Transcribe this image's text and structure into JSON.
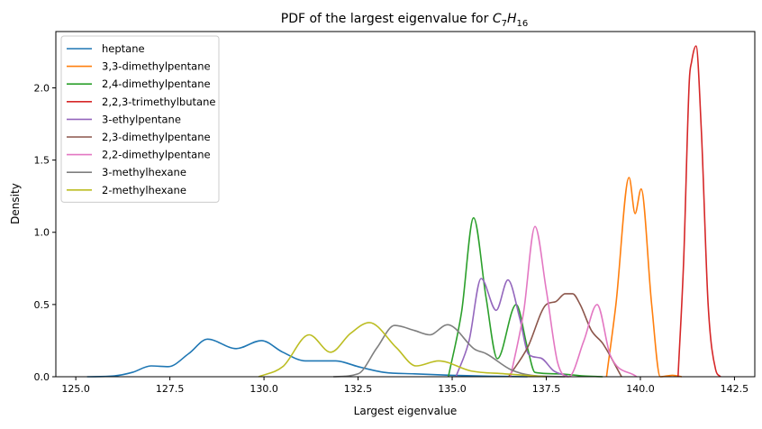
{
  "chart_data": {
    "type": "line",
    "title": "PDF of the largest eigenvalue for ",
    "title_math": {
      "base1": "C",
      "sub1": "7",
      "base2": "H",
      "sub2": "16"
    },
    "xlabel": "Largest eigenvalue",
    "ylabel": "Density",
    "xlim": [
      124.47,
      143.04
    ],
    "ylim": [
      0,
      2.39
    ],
    "xticks": [
      125.0,
      127.5,
      130.0,
      132.5,
      135.0,
      137.5,
      140.0,
      142.5
    ],
    "xtick_labels": [
      "125.0",
      "127.5",
      "130.0",
      "132.5",
      "135.0",
      "137.5",
      "140.0",
      "142.5"
    ],
    "yticks": [
      0.0,
      0.5,
      1.0,
      1.5,
      2.0
    ],
    "ytick_labels": [
      "0.0",
      "0.5",
      "1.0",
      "1.5",
      "2.0"
    ],
    "grid": false,
    "legend_position": "top-left",
    "series": [
      {
        "name": "heptane",
        "color": "#1f77b4",
        "x": [
          125.3,
          126.0,
          126.5,
          127.0,
          127.46,
          128.0,
          128.5,
          129.26,
          129.93,
          130.5,
          131.1,
          131.9,
          132.5,
          133.2,
          134.0,
          135.0,
          136.0,
          137.0
        ],
        "y": [
          0,
          0.005,
          0.03,
          0.075,
          0.07,
          0.16,
          0.26,
          0.195,
          0.25,
          0.17,
          0.11,
          0.11,
          0.07,
          0.03,
          0.02,
          0.01,
          0.004,
          0
        ]
      },
      {
        "name": "3,3-dimethylpentane",
        "color": "#ff7f0e",
        "x": [
          139.1,
          139.35,
          139.7,
          139.86,
          140.02,
          140.3,
          140.53,
          140.85,
          141.1
        ],
        "y": [
          0,
          0.5,
          1.38,
          1.13,
          1.3,
          0.5,
          0,
          0.01,
          0
        ]
      },
      {
        "name": "2,4-dimethylpentane",
        "color": "#2ca02c",
        "x": [
          134.9,
          135.25,
          135.57,
          135.9,
          136.2,
          136.7,
          137.0,
          137.2,
          137.8,
          138.5,
          139.0
        ],
        "y": [
          0,
          0.45,
          1.1,
          0.55,
          0.125,
          0.5,
          0.2,
          0.03,
          0.02,
          0.005,
          0
        ]
      },
      {
        "name": "2,2,3-trimethylbutane",
        "color": "#d62728",
        "x": [
          141.0,
          141.15,
          141.3,
          141.36,
          141.48,
          141.62,
          141.8,
          142.0,
          142.13
        ],
        "y": [
          0,
          0.8,
          2.05,
          2.18,
          2.29,
          1.7,
          0.5,
          0.05,
          0
        ]
      },
      {
        "name": "3-ethylpentane",
        "color": "#9467bd",
        "x": [
          135.1,
          135.45,
          135.77,
          136.17,
          136.48,
          136.8,
          137.03,
          137.35,
          137.7,
          138.06
        ],
        "y": [
          0,
          0.25,
          0.68,
          0.46,
          0.67,
          0.4,
          0.155,
          0.13,
          0.04,
          0.005
        ]
      },
      {
        "name": "2,3-dimethylpentane",
        "color": "#8c564b",
        "x": [
          136.5,
          137.0,
          137.5,
          137.75,
          138.0,
          138.2,
          138.4,
          138.7,
          139.0,
          139.5
        ],
        "y": [
          0,
          0.2,
          0.5,
          0.52,
          0.575,
          0.575,
          0.5,
          0.32,
          0.23,
          0
        ]
      },
      {
        "name": "2,2-dimethylpentane",
        "color": "#e377c2",
        "x": [
          136.55,
          136.9,
          137.2,
          137.5,
          137.8,
          138.1,
          138.5,
          138.85,
          139.2,
          139.9
        ],
        "y": [
          0,
          0.45,
          1.04,
          0.6,
          0.1,
          0,
          0.25,
          0.5,
          0.15,
          0
        ]
      },
      {
        "name": "3-methylhexane",
        "color": "#7f7f7f",
        "x": [
          131.84,
          132.5,
          133.0,
          133.47,
          134.0,
          134.4,
          134.88,
          135.6,
          135.9,
          136.55,
          137.1,
          138.0
        ],
        "y": [
          0,
          0.02,
          0.2,
          0.355,
          0.32,
          0.29,
          0.36,
          0.19,
          0.16,
          0.05,
          0.01,
          0
        ]
      },
      {
        "name": "2-methylhexane",
        "color": "#bcbd22",
        "x": [
          129.86,
          130.5,
          131.2,
          131.77,
          132.3,
          132.8,
          133.52,
          134.04,
          134.64,
          135.5,
          136.4,
          137.5
        ],
        "y": [
          0,
          0.07,
          0.29,
          0.17,
          0.3,
          0.375,
          0.2,
          0.075,
          0.11,
          0.04,
          0.02,
          0
        ]
      }
    ]
  }
}
